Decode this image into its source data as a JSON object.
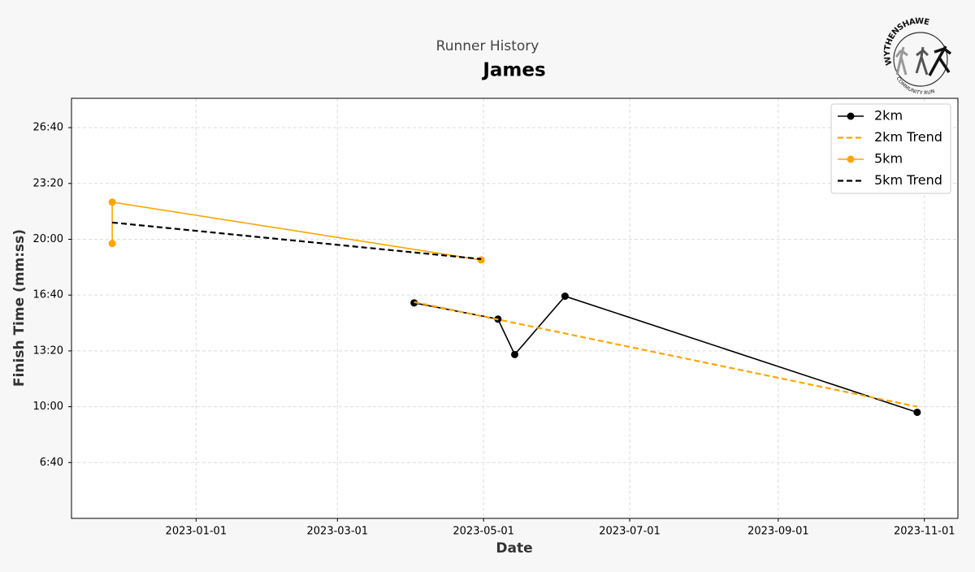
{
  "chart_data": {
    "type": "line",
    "title": "Runner History",
    "subtitle": "James",
    "logo_text": {
      "top": "WYTHENSHAWE",
      "bottom": "COMMUNITY RUN"
    },
    "xlabel": "Date",
    "ylabel": "Finish Time (mm:ss)",
    "xlim": [
      "2022-11-10",
      "2023-11-15"
    ],
    "xticks": [
      "2023-01-01",
      "2023-03-01",
      "2023-05-01",
      "2023-07-01",
      "2023-09-01",
      "2023-11-01"
    ],
    "ylim": [
      200,
      1705
    ],
    "yticks": [
      {
        "value": 400,
        "label": "6:40"
      },
      {
        "value": 600,
        "label": "10:00"
      },
      {
        "value": 800,
        "label": "13:20"
      },
      {
        "value": 1000,
        "label": "16:40"
      },
      {
        "value": 1200,
        "label": "20:00"
      },
      {
        "value": 1400,
        "label": "23:20"
      },
      {
        "value": 1600,
        "label": "26:40"
      }
    ],
    "grid": true,
    "legend": "upper right",
    "series": [
      {
        "name": "2km",
        "color": "#000000",
        "dashed": false,
        "markers": true,
        "x": [
          "2023-04-02",
          "2023-05-07",
          "2023-05-14",
          "2023-06-04",
          "2023-10-29"
        ],
        "values": [
          972,
          914,
          787,
          996,
          580
        ]
      },
      {
        "name": "2km Trend",
        "color": "#ffa500",
        "dashed": true,
        "markers": false,
        "x": [
          "2023-04-02",
          "2023-10-29"
        ],
        "values": [
          975,
          600
        ]
      },
      {
        "name": "5km",
        "color": "#ffa500",
        "dashed": false,
        "markers": true,
        "x": [
          "2022-11-27",
          "2022-11-27",
          "2023-04-30"
        ],
        "values": [
          1185,
          1333,
          1126
        ]
      },
      {
        "name": "5km Trend",
        "color": "#000000",
        "dashed": true,
        "markers": false,
        "x": [
          "2022-11-27",
          "2023-04-30"
        ],
        "values": [
          1260,
          1129
        ]
      }
    ]
  }
}
